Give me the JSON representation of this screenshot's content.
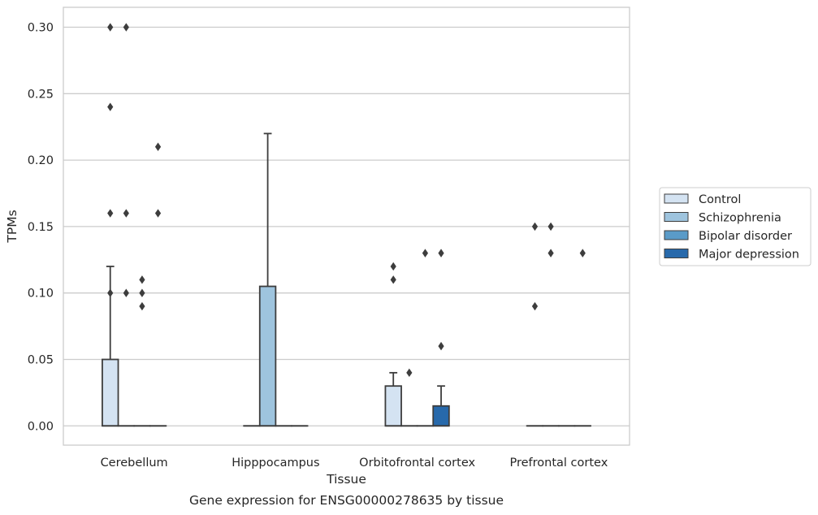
{
  "chart_data": {
    "type": "box",
    "caption": "Gene expression for ENSG00000278635 by tissue",
    "xlabel": "Tissue",
    "ylabel": "TPMs",
    "ylim": [
      -0.0145,
      0.315
    ],
    "yticks": [
      0.0,
      0.05,
      0.1,
      0.15,
      0.2,
      0.25,
      0.3
    ],
    "ytick_labels": [
      "0.00",
      "0.05",
      "0.10",
      "0.15",
      "0.20",
      "0.25",
      "0.30"
    ],
    "grid": "horizontal",
    "legend_position": "right",
    "categories": [
      "Cerebellum",
      "Hipppocampus",
      "Orbitofrontal cortex",
      "Prefrontal cortex"
    ],
    "series": [
      {
        "name": "Control",
        "color": "#d4e3f2",
        "boxes": [
          {
            "q1": 0.0,
            "median": 0.0,
            "q3": 0.05,
            "whisker_low": 0.0,
            "whisker_high": 0.12,
            "outliers": [
              0.24,
              0.3,
              0.16,
              0.1
            ]
          },
          {
            "q1": 0.0,
            "median": 0.0,
            "q3": 0.0,
            "whisker_low": 0.0,
            "whisker_high": 0.0,
            "outliers": []
          },
          {
            "q1": 0.0,
            "median": 0.0,
            "q3": 0.03,
            "whisker_low": 0.0,
            "whisker_high": 0.04,
            "outliers": [
              0.12,
              0.11
            ]
          },
          {
            "q1": 0.0,
            "median": 0.0,
            "q3": 0.0,
            "whisker_low": 0.0,
            "whisker_high": 0.0,
            "outliers": [
              0.15,
              0.09
            ]
          }
        ]
      },
      {
        "name": "Schizophrenia",
        "color": "#9ec4de",
        "boxes": [
          {
            "q1": 0.0,
            "median": 0.0,
            "q3": 0.0,
            "whisker_low": 0.0,
            "whisker_high": 0.0,
            "outliers": [
              0.3,
              0.16,
              0.1
            ]
          },
          {
            "q1": 0.0,
            "median": 0.0,
            "q3": 0.105,
            "whisker_low": 0.0,
            "whisker_high": 0.22,
            "outliers": []
          },
          {
            "q1": 0.0,
            "median": 0.0,
            "q3": 0.0,
            "whisker_low": 0.0,
            "whisker_high": 0.0,
            "outliers": [
              0.04
            ]
          },
          {
            "q1": 0.0,
            "median": 0.0,
            "q3": 0.0,
            "whisker_low": 0.0,
            "whisker_high": 0.0,
            "outliers": [
              0.15,
              0.13
            ]
          }
        ]
      },
      {
        "name": "Bipolar disorder",
        "color": "#5a9bc8",
        "boxes": [
          {
            "q1": 0.0,
            "median": 0.0,
            "q3": 0.0,
            "whisker_low": 0.0,
            "whisker_high": 0.0,
            "outliers": [
              0.11,
              0.1,
              0.09
            ]
          },
          {
            "q1": 0.0,
            "median": 0.0,
            "q3": 0.0,
            "whisker_low": 0.0,
            "whisker_high": 0.0,
            "outliers": []
          },
          {
            "q1": 0.0,
            "median": 0.0,
            "q3": 0.0,
            "whisker_low": 0.0,
            "whisker_high": 0.0,
            "outliers": [
              0.13
            ]
          },
          {
            "q1": 0.0,
            "median": 0.0,
            "q3": 0.0,
            "whisker_low": 0.0,
            "whisker_high": 0.0,
            "outliers": []
          }
        ]
      },
      {
        "name": "Major depression",
        "color": "#2769ab",
        "boxes": [
          {
            "q1": 0.0,
            "median": 0.0,
            "q3": 0.0,
            "whisker_low": 0.0,
            "whisker_high": 0.0,
            "outliers": [
              0.21,
              0.16
            ]
          },
          {
            "q1": 0.0,
            "median": 0.0,
            "q3": 0.0,
            "whisker_low": 0.0,
            "whisker_high": 0.0,
            "outliers": []
          },
          {
            "q1": 0.0,
            "median": 0.0,
            "q3": 0.015,
            "whisker_low": 0.0,
            "whisker_high": 0.03,
            "outliers": [
              0.13,
              0.06
            ]
          },
          {
            "q1": 0.0,
            "median": 0.0,
            "q3": 0.0,
            "whisker_low": 0.0,
            "whisker_high": 0.0,
            "outliers": [
              0.13
            ]
          }
        ]
      }
    ]
  }
}
